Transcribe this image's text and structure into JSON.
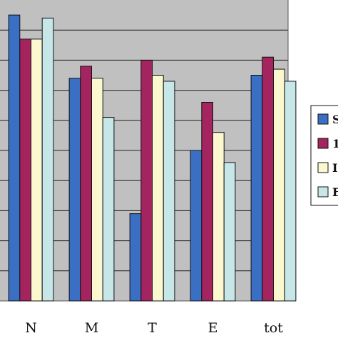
{
  "chart_data": {
    "type": "bar",
    "categories": [
      "N",
      "M",
      "T",
      "E",
      "tot"
    ],
    "ylim": [
      0,
      100
    ],
    "grid": true,
    "legend_position": "right",
    "series": [
      {
        "color": "#3a6fc4",
        "values": [
          95,
          74,
          29,
          50,
          75
        ]
      },
      {
        "color": "#a3245f",
        "values": [
          87,
          78,
          80,
          66,
          81
        ]
      },
      {
        "color": "#fbf8d0",
        "values": [
          87,
          74,
          75,
          56,
          77
        ]
      },
      {
        "color": "#c6e6e8",
        "values": [
          94,
          61,
          73,
          46,
          73
        ]
      }
    ],
    "legend": [
      {
        "text": "S",
        "color": "#3a6fc4"
      },
      {
        "text": "1",
        "color": "#a3245f"
      },
      {
        "text": "I",
        "color": "#fbf8d0"
      },
      {
        "text": "E",
        "color": "#c6e6e8"
      }
    ]
  }
}
